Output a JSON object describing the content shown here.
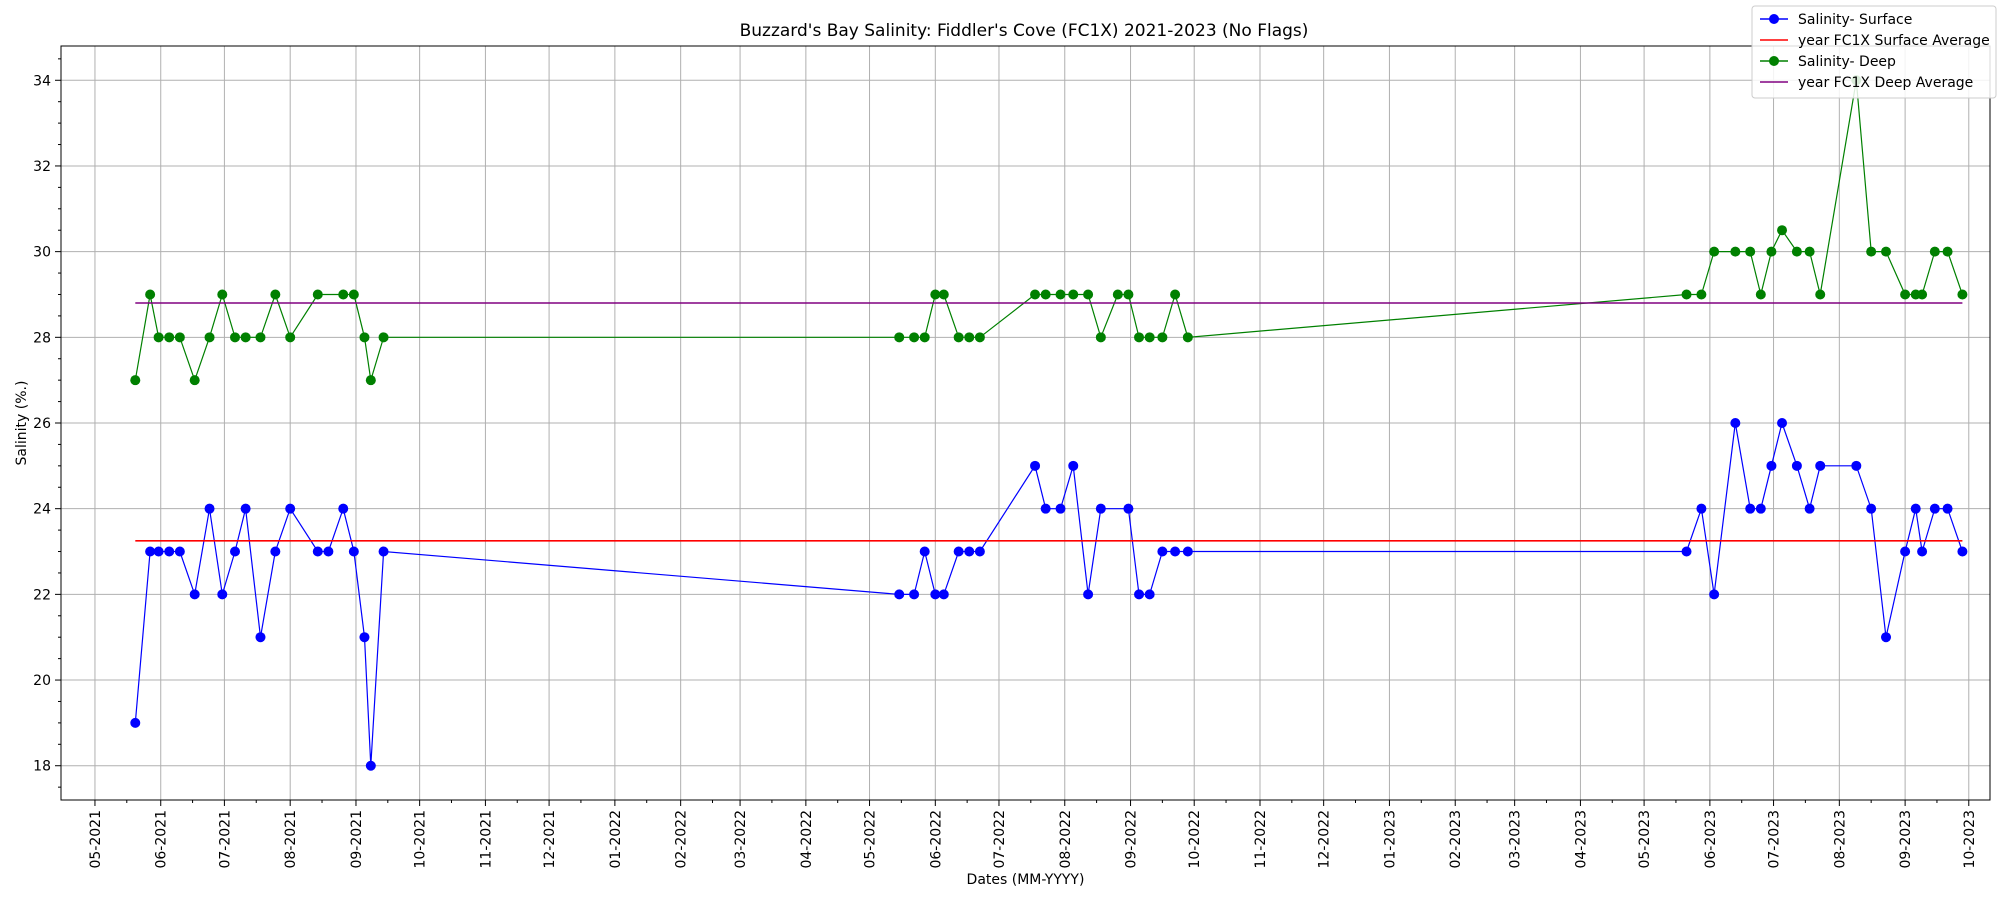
{
  "chart_data": {
    "type": "line",
    "title": "Buzzard's Bay Salinity: Fiddler's Cove (FC1X) 2021-2023 (No Flags)",
    "xlabel": "Dates (MM-YYYY)",
    "ylabel": "Salinity (%.)",
    "xlim": [
      "2021-04-15",
      "2023-10-11"
    ],
    "ylim": [
      17.2,
      34.8
    ],
    "y_ticks": [
      18,
      20,
      22,
      24,
      26,
      28,
      30,
      32,
      34
    ],
    "x_tick_labels": [
      "05-2021",
      "06-2021",
      "07-2021",
      "08-2021",
      "09-2021",
      "10-2021",
      "11-2021",
      "12-2021",
      "01-2022",
      "02-2022",
      "03-2022",
      "04-2022",
      "05-2022",
      "06-2022",
      "07-2022",
      "08-2022",
      "09-2022",
      "10-2022",
      "11-2022",
      "12-2022",
      "01-2023",
      "02-2023",
      "03-2023",
      "04-2023",
      "05-2023",
      "06-2023",
      "07-2023",
      "08-2023",
      "09-2023",
      "10-2023"
    ],
    "grid": true,
    "legend_position": "top-right",
    "series": [
      {
        "name": "Salinity- Surface",
        "color": "#0000ff",
        "marker": "circle",
        "x": [
          "2021-05-20",
          "2021-05-27",
          "2021-05-31",
          "2021-06-05",
          "2021-06-10",
          "2021-06-17",
          "2021-06-24",
          "2021-06-30",
          "2021-07-06",
          "2021-07-11",
          "2021-07-18",
          "2021-07-25",
          "2021-08-01",
          "2021-08-14",
          "2021-08-19",
          "2021-08-26",
          "2021-08-31",
          "2021-09-05",
          "2021-09-08",
          "2021-09-14",
          "2022-05-15",
          "2022-05-22",
          "2022-05-27",
          "2022-06-01",
          "2022-06-05",
          "2022-06-12",
          "2022-06-17",
          "2022-06-22",
          "2022-07-18",
          "2022-07-23",
          "2022-07-30",
          "2022-08-05",
          "2022-08-12",
          "2022-08-18",
          "2022-08-31",
          "2022-09-05",
          "2022-09-10",
          "2022-09-16",
          "2022-09-22",
          "2022-09-28",
          "2023-05-21",
          "2023-05-28",
          "2023-06-03",
          "2023-06-13",
          "2023-06-20",
          "2023-06-25",
          "2023-06-30",
          "2023-07-05",
          "2023-07-12",
          "2023-07-18",
          "2023-07-23",
          "2023-08-09",
          "2023-08-16",
          "2023-08-23",
          "2023-09-01",
          "2023-09-06",
          "2023-09-09",
          "2023-09-15",
          "2023-09-21",
          "2023-09-28"
        ],
        "y": [
          19,
          23,
          23,
          23,
          23,
          22,
          24,
          22,
          23,
          24,
          21,
          23,
          24,
          23,
          23,
          24,
          23,
          21,
          18,
          23,
          22,
          22,
          23,
          22,
          22,
          23,
          23,
          23,
          25,
          24,
          24,
          25,
          22,
          24,
          24,
          22,
          22,
          23,
          23,
          23,
          23,
          24,
          22,
          26,
          24,
          24,
          25,
          26,
          25,
          24,
          25,
          25,
          24,
          21,
          23,
          24,
          23,
          24,
          24,
          23
        ]
      },
      {
        "name": "year FC1X Surface Average",
        "color": "#ff0000",
        "marker": "none",
        "x": [
          "2021-05-20",
          "2023-09-28"
        ],
        "y": [
          23.25,
          23.25
        ]
      },
      {
        "name": "Salinity- Deep",
        "color": "#008000",
        "marker": "circle",
        "x": [
          "2021-05-20",
          "2021-05-27",
          "2021-05-31",
          "2021-06-05",
          "2021-06-10",
          "2021-06-17",
          "2021-06-24",
          "2021-06-30",
          "2021-07-06",
          "2021-07-11",
          "2021-07-18",
          "2021-07-25",
          "2021-08-01",
          "2021-08-14",
          "2021-08-26",
          "2021-08-31",
          "2021-09-05",
          "2021-09-08",
          "2021-09-14",
          "2022-05-15",
          "2022-05-22",
          "2022-05-27",
          "2022-06-01",
          "2022-06-05",
          "2022-06-12",
          "2022-06-17",
          "2022-06-22",
          "2022-07-18",
          "2022-07-23",
          "2022-07-30",
          "2022-08-05",
          "2022-08-12",
          "2022-08-18",
          "2022-08-26",
          "2022-08-31",
          "2022-09-05",
          "2022-09-10",
          "2022-09-16",
          "2022-09-22",
          "2022-09-28",
          "2023-05-21",
          "2023-05-28",
          "2023-06-03",
          "2023-06-13",
          "2023-06-20",
          "2023-06-25",
          "2023-06-30",
          "2023-07-05",
          "2023-07-12",
          "2023-07-18",
          "2023-07-23",
          "2023-08-09",
          "2023-08-16",
          "2023-08-23",
          "2023-09-01",
          "2023-09-06",
          "2023-09-09",
          "2023-09-15",
          "2023-09-21",
          "2023-09-28"
        ],
        "y": [
          27,
          29,
          28,
          28,
          28,
          27,
          28,
          29,
          28,
          28,
          28,
          29,
          28,
          29,
          29,
          29,
          28,
          27,
          28,
          28,
          28,
          28,
          29,
          29,
          28,
          28,
          28,
          29,
          29,
          29,
          29,
          29,
          28,
          29,
          29,
          28,
          28,
          28,
          29,
          28,
          29,
          29,
          30,
          30,
          30,
          29,
          30,
          30.5,
          30,
          30,
          29,
          34,
          30,
          30,
          29,
          29,
          29,
          30,
          30,
          29
        ]
      },
      {
        "name": "year FC1X Deep Average",
        "color": "#800080",
        "marker": "none",
        "x": [
          "2021-05-20",
          "2023-09-28"
        ],
        "y": [
          28.8,
          28.8
        ]
      }
    ]
  }
}
